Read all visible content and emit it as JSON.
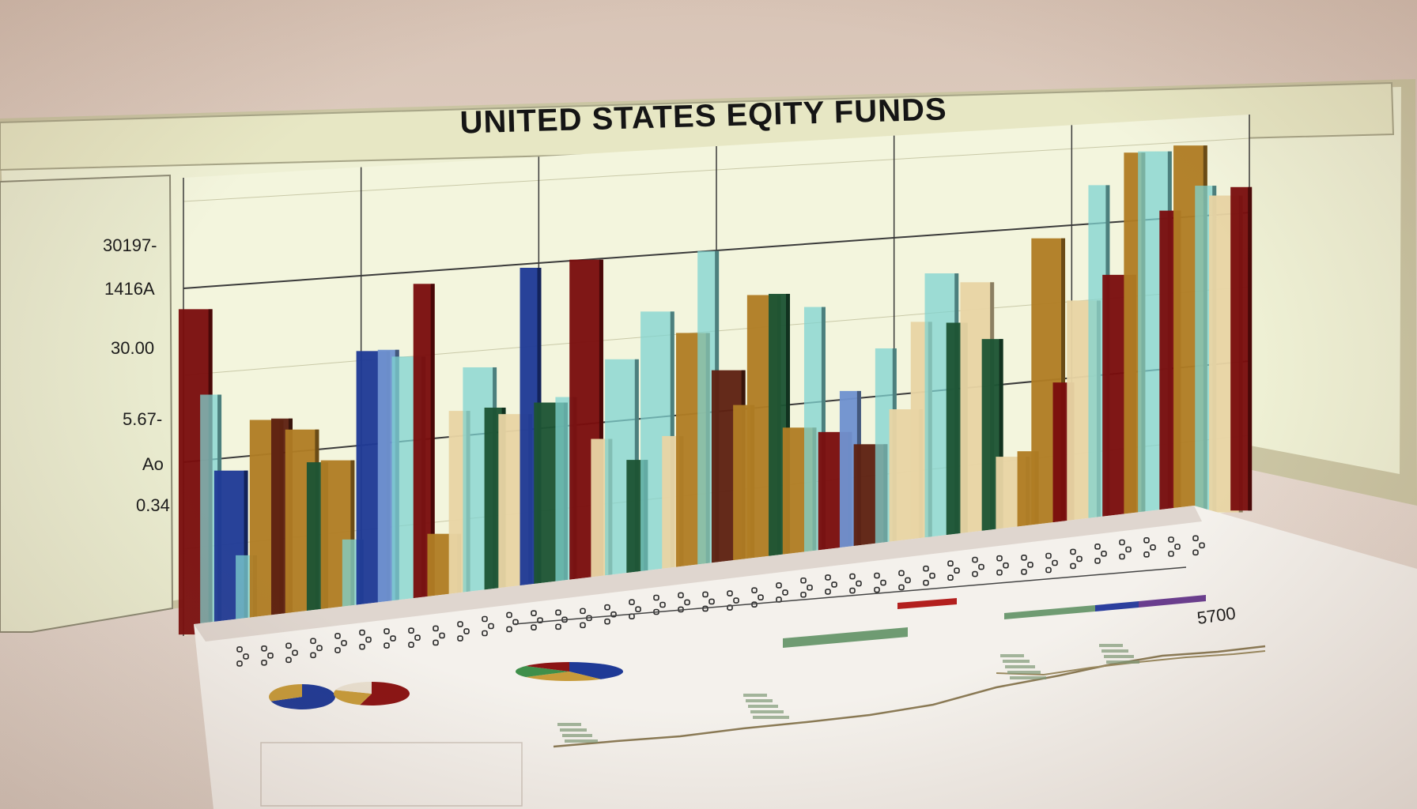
{
  "chart_data": {
    "type": "bar",
    "title": "UNITED STATES EQITY FUNDS",
    "xlabel": "",
    "ylabel": "",
    "y_tick_labels": [
      "30197-",
      "1416A",
      "30.00",
      "5.67-",
      "Ao",
      "0.34"
    ],
    "ylim": [
      0,
      100
    ],
    "grid": true,
    "legend": "none",
    "colors": {
      "maroon": "#7a0e0e",
      "blue": "#1f3a96",
      "teal": "#7fd3d0",
      "gold": "#b07d24",
      "brown": "#5e2112",
      "green": "#1d5434",
      "cream": "#e8d4a4",
      "lightblue": "#6f92cf"
    },
    "values": [
      {
        "color": "maroon",
        "value": 75
      },
      {
        "color": "teal",
        "value": 55
      },
      {
        "color": "blue",
        "value": 37
      },
      {
        "color": "teal",
        "value": 17
      },
      {
        "color": "gold",
        "value": 48
      },
      {
        "color": "brown",
        "value": 48
      },
      {
        "color": "gold",
        "value": 45
      },
      {
        "color": "green",
        "value": 37
      },
      {
        "color": "gold",
        "value": 37
      },
      {
        "color": "teal",
        "value": 18
      },
      {
        "color": "blue",
        "value": 62
      },
      {
        "color": "lightblue",
        "value": 62
      },
      {
        "color": "teal",
        "value": 60
      },
      {
        "color": "maroon",
        "value": 77
      },
      {
        "color": "gold",
        "value": 17
      },
      {
        "color": "cream",
        "value": 46
      },
      {
        "color": "teal",
        "value": 56
      },
      {
        "color": "green",
        "value": 46
      },
      {
        "color": "cream",
        "value": 44
      },
      {
        "color": "blue",
        "value": 79
      },
      {
        "color": "green",
        "value": 46
      },
      {
        "color": "teal",
        "value": 47
      },
      {
        "color": "maroon",
        "value": 80
      },
      {
        "color": "cream",
        "value": 36
      },
      {
        "color": "teal",
        "value": 55
      },
      {
        "color": "green",
        "value": 30
      },
      {
        "color": "teal",
        "value": 66
      },
      {
        "color": "cream",
        "value": 35
      },
      {
        "color": "gold",
        "value": 60
      },
      {
        "color": "teal",
        "value": 80
      },
      {
        "color": "brown",
        "value": 50
      },
      {
        "color": "gold",
        "value": 41
      },
      {
        "color": "gold",
        "value": 68
      },
      {
        "color": "green",
        "value": 68
      },
      {
        "color": "gold",
        "value": 34
      },
      {
        "color": "teal",
        "value": 64
      },
      {
        "color": "maroon",
        "value": 32
      },
      {
        "color": "lightblue",
        "value": 42
      },
      {
        "color": "brown",
        "value": 28
      },
      {
        "color": "teal",
        "value": 52
      },
      {
        "color": "cream",
        "value": 36
      },
      {
        "color": "cream",
        "value": 58
      },
      {
        "color": "teal",
        "value": 70
      },
      {
        "color": "green",
        "value": 57
      },
      {
        "color": "cream",
        "value": 67
      },
      {
        "color": "green",
        "value": 52
      },
      {
        "color": "cream",
        "value": 21
      },
      {
        "color": "gold",
        "value": 22
      },
      {
        "color": "gold",
        "value": 77
      },
      {
        "color": "maroon",
        "value": 39
      },
      {
        "color": "cream",
        "value": 60
      },
      {
        "color": "teal",
        "value": 90
      },
      {
        "color": "maroon",
        "value": 66
      },
      {
        "color": "gold",
        "value": 98
      },
      {
        "color": "teal",
        "value": 98
      },
      {
        "color": "maroon",
        "value": 82
      },
      {
        "color": "gold",
        "value": 99
      },
      {
        "color": "teal",
        "value": 88
      },
      {
        "color": "cream",
        "value": 85
      },
      {
        "color": "maroon",
        "value": 87
      }
    ]
  },
  "report_sheet": {
    "scale_label": "5700",
    "colors": {
      "red": "#b3201e",
      "green": "#6f9b72",
      "blue": "#2b3f9e",
      "purple": "#6a3d8f",
      "pie_blue": "#1f3a96",
      "pie_gold": "#c79b3a",
      "pie_red": "#8b1414",
      "pie_green": "#3f8f4a"
    }
  }
}
